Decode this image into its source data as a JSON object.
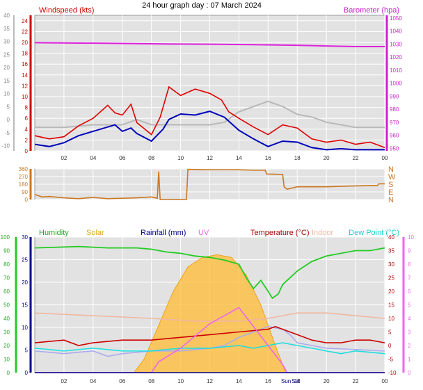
{
  "title": "24 hour graph day : 07 March 2024",
  "colors": {
    "wind": "#e00000",
    "wind_dir_series": "#cc7722",
    "baro": "#dd22dd",
    "humidity": "#22cc22",
    "solar": "#ffbb33",
    "rain": "#000088",
    "uv": "#ee66ee",
    "temp": "#cc0000",
    "indoor": "#f0b8a0",
    "dew": "#22dddd",
    "gray_line": "#b8b8b8",
    "gust_blue": "#0000bb",
    "lavender": "#aaaaee",
    "grid": "#ffffff",
    "plot_bg": "#e2e2e2"
  },
  "x_ticks": [
    "02",
    "04",
    "06",
    "08",
    "10",
    "12",
    "14",
    "16",
    "18",
    "20",
    "22",
    "00"
  ],
  "annotations": {
    "sun_rise": "Sun",
    "sun_set": "Set"
  },
  "panel1": {
    "left_axis_label": "Windspeed (kts)",
    "right_axis_label": "Barometer (hpa)",
    "left_ticks": [
      "0",
      "2",
      "4",
      "6",
      "8",
      "10",
      "12",
      "14",
      "16",
      "18",
      "20",
      "22",
      "24"
    ],
    "outer_ticks": [
      "-10",
      "-5",
      "0",
      "5",
      "10",
      "15",
      "20",
      "25",
      "30",
      "35",
      "40"
    ],
    "right_ticks": [
      "950",
      "960",
      "970",
      "980",
      "990",
      "1000",
      "1010",
      "1020",
      "1030",
      "1040",
      "1050"
    ]
  },
  "panel2": {
    "left_ticks": [
      "0",
      "90",
      "180",
      "270",
      "360"
    ],
    "right_ticks": [
      "N",
      "E",
      "S",
      "W",
      "N"
    ]
  },
  "panel3": {
    "headers": [
      "Humidity",
      "Solar",
      "Rainfall (mm)",
      "UV",
      "Temperature (°C)",
      "Indoor",
      "Dew Point (°C)"
    ],
    "far_left_ticks": [
      "0",
      "10",
      "20",
      "30",
      "40",
      "50",
      "60",
      "70",
      "80",
      "90",
      "100"
    ],
    "left_ticks": [
      "0",
      "5",
      "10",
      "15",
      "20",
      "25",
      "30"
    ],
    "right_ticks": [
      "-10",
      "-5",
      "0",
      "5",
      "10",
      "15",
      "20",
      "25",
      "30",
      "35",
      "40"
    ],
    "far_right_ticks": [
      "0",
      "1",
      "2",
      "3",
      "4",
      "5",
      "6",
      "7",
      "8",
      "9",
      "10"
    ]
  },
  "chart_data": [
    {
      "type": "line",
      "title": "24 hour graph day : 07 March 2024",
      "ylabel": "Windspeed (kts)",
      "y2label": "Barometer (hpa)",
      "ylim": [
        0,
        25
      ],
      "y2lim": [
        950,
        1050
      ],
      "x_unit": "hours",
      "xlim": [
        0,
        24
      ],
      "series": [
        {
          "name": "Barometer (hpa)",
          "axis": "right",
          "points": [
            [
              0,
              1031
            ],
            [
              5,
              1030.5
            ],
            [
              9,
              1030
            ],
            [
              12,
              1029.8
            ],
            [
              15,
              1029.5
            ],
            [
              18,
              1029
            ],
            [
              20,
              1028.5
            ],
            [
              22,
              1028
            ],
            [
              24,
              1028
            ]
          ]
        },
        {
          "name": "Windspeed (kts)",
          "axis": "left",
          "points": [
            [
              0,
              1.2
            ],
            [
              1,
              0.8
            ],
            [
              2,
              1.5
            ],
            [
              3,
              2.8
            ],
            [
              4,
              3.6
            ],
            [
              5,
              4.4
            ],
            [
              5.5,
              4.8
            ],
            [
              6,
              3.6
            ],
            [
              6.6,
              4.2
            ],
            [
              7,
              3.2
            ],
            [
              8,
              1.8
            ],
            [
              8.8,
              4.0
            ],
            [
              9.2,
              5.8
            ],
            [
              10,
              6.8
            ],
            [
              11,
              6.6
            ],
            [
              12,
              7.3
            ],
            [
              13,
              6.2
            ],
            [
              13.5,
              5.0
            ],
            [
              14,
              3.8
            ],
            [
              15,
              2.2
            ],
            [
              16,
              0.8
            ],
            [
              17,
              1.8
            ],
            [
              18,
              1.6
            ],
            [
              19,
              0.6
            ],
            [
              20,
              0.2
            ],
            [
              21,
              0.4
            ],
            [
              22,
              0.2
            ],
            [
              24,
              0.2
            ]
          ]
        },
        {
          "name": "Wind Gust (kts)",
          "axis": "left",
          "points": [
            [
              0,
              2.8
            ],
            [
              1,
              2.2
            ],
            [
              2,
              2.6
            ],
            [
              3,
              4.6
            ],
            [
              4,
              6.0
            ],
            [
              5,
              8.4
            ],
            [
              5.5,
              7.0
            ],
            [
              6,
              6.6
            ],
            [
              6.6,
              8.6
            ],
            [
              7,
              5.2
            ],
            [
              8,
              3.0
            ],
            [
              8.6,
              6.2
            ],
            [
              9.2,
              11.8
            ],
            [
              10,
              10.2
            ],
            [
              11,
              11.4
            ],
            [
              12,
              10.6
            ],
            [
              12.8,
              9.4
            ],
            [
              13.3,
              7.2
            ],
            [
              14,
              6.0
            ],
            [
              15,
              4.4
            ],
            [
              16,
              3.0
            ],
            [
              17,
              4.8
            ],
            [
              18,
              4.2
            ],
            [
              19,
              2.2
            ],
            [
              20,
              1.6
            ],
            [
              21,
              2.0
            ],
            [
              22,
              1.2
            ],
            [
              23,
              1.6
            ],
            [
              24,
              0.6
            ]
          ]
        },
        {
          "name": "Gray line",
          "axis": "outer",
          "points": [
            [
              0,
              -3
            ],
            [
              2,
              -3
            ],
            [
              4,
              -2
            ],
            [
              6,
              -2
            ],
            [
              7,
              0
            ],
            [
              8,
              -2
            ],
            [
              9,
              -2
            ],
            [
              10,
              -2
            ],
            [
              12,
              -2
            ],
            [
              13,
              -1
            ],
            [
              14,
              3
            ],
            [
              16,
              7
            ],
            [
              17,
              5
            ],
            [
              18,
              2
            ],
            [
              19,
              1
            ],
            [
              20,
              -1
            ],
            [
              22,
              -3
            ],
            [
              24,
              -3
            ]
          ]
        }
      ]
    },
    {
      "type": "line",
      "ylabel": "",
      "ylim": [
        0,
        360
      ],
      "x_unit": "hours",
      "xlim": [
        0,
        24
      ],
      "series": [
        {
          "name": "Wind direction",
          "points": [
            [
              0,
              60
            ],
            [
              0.5,
              30
            ],
            [
              1,
              35
            ],
            [
              2,
              20
            ],
            [
              3,
              10
            ],
            [
              4,
              25
            ],
            [
              5,
              10
            ],
            [
              6,
              15
            ],
            [
              7,
              20
            ],
            [
              8,
              30
            ],
            [
              8.4,
              15
            ],
            [
              8.5,
              330
            ],
            [
              8.6,
              0
            ],
            [
              10.4,
              0
            ],
            [
              10.5,
              355
            ],
            [
              12,
              350
            ],
            [
              13,
              352
            ],
            [
              14,
              350
            ],
            [
              15,
              345
            ],
            [
              15.8,
              345
            ],
            [
              15.9,
              300
            ],
            [
              17,
              295
            ],
            [
              17.1,
              150
            ],
            [
              17.3,
              120
            ],
            [
              18,
              150
            ],
            [
              20,
              150
            ],
            [
              22,
              160
            ],
            [
              23.5,
              165
            ],
            [
              23.6,
              185
            ],
            [
              24,
              185
            ]
          ]
        }
      ]
    },
    {
      "type": "area",
      "xlim": [
        0,
        24
      ],
      "x_unit": "hours",
      "axes": {
        "humidity": [
          0,
          100
        ],
        "rainfall_mm": [
          0,
          30
        ],
        "temperature_c": [
          -10,
          40
        ],
        "uv": [
          0,
          10
        ]
      },
      "series": [
        {
          "name": "Humidity",
          "axis": "humidity",
          "points": [
            [
              0,
              92
            ],
            [
              3,
              93
            ],
            [
              5,
              92
            ],
            [
              7,
              92
            ],
            [
              8,
              91
            ],
            [
              9,
              89
            ],
            [
              10,
              88
            ],
            [
              11,
              86
            ],
            [
              12,
              85
            ],
            [
              13,
              83
            ],
            [
              14,
              80
            ],
            [
              14.5,
              70
            ],
            [
              15,
              62
            ],
            [
              15.5,
              68
            ],
            [
              16,
              60
            ],
            [
              16.3,
              55
            ],
            [
              16.7,
              58
            ],
            [
              17,
              65
            ],
            [
              18,
              75
            ],
            [
              19,
              82
            ],
            [
              20,
              86
            ],
            [
              21,
              88
            ],
            [
              22,
              90
            ],
            [
              23,
              90
            ],
            [
              24,
              92
            ]
          ]
        },
        {
          "name": "Solar",
          "axis": "solar",
          "points": [
            [
              0,
              0
            ],
            [
              6.8,
              0
            ],
            [
              7.5,
              10
            ],
            [
              8.5,
              35
            ],
            [
              9.5,
              60
            ],
            [
              10.5,
              78
            ],
            [
              11.5,
              85
            ],
            [
              12.5,
              87
            ],
            [
              13.5,
              85
            ],
            [
              14.5,
              72
            ],
            [
              15.5,
              50
            ],
            [
              16.5,
              20
            ],
            [
              17.2,
              0
            ],
            [
              24,
              0
            ]
          ]
        },
        {
          "name": "Indoor",
          "axis": "temperature_c",
          "points": [
            [
              0,
              12
            ],
            [
              4,
              11
            ],
            [
              8,
              10
            ],
            [
              11,
              9
            ],
            [
              14,
              9
            ],
            [
              16,
              10
            ],
            [
              18,
              12
            ],
            [
              20,
              12
            ],
            [
              22,
              11
            ],
            [
              24,
              10
            ]
          ]
        },
        {
          "name": "Temperature (°C)",
          "axis": "temperature_c",
          "points": [
            [
              0,
              1
            ],
            [
              2,
              2
            ],
            [
              3,
              0
            ],
            [
              4,
              1
            ],
            [
              6,
              2
            ],
            [
              8,
              2
            ],
            [
              10,
              3
            ],
            [
              12,
              4
            ],
            [
              14,
              5
            ],
            [
              16,
              6
            ],
            [
              16.5,
              7
            ],
            [
              17,
              6
            ],
            [
              18,
              4
            ],
            [
              19,
              2
            ],
            [
              20,
              1
            ],
            [
              21,
              1
            ],
            [
              22,
              2
            ],
            [
              23,
              2
            ],
            [
              24,
              1
            ]
          ]
        },
        {
          "name": "Dew Point (°C)",
          "axis": "temperature_c",
          "points": [
            [
              0,
              -1
            ],
            [
              2,
              -2
            ],
            [
              4,
              -1
            ],
            [
              6,
              -2
            ],
            [
              8,
              -2
            ],
            [
              10,
              -1
            ],
            [
              12,
              -1
            ],
            [
              14,
              0
            ],
            [
              15,
              -1
            ],
            [
              16,
              0
            ],
            [
              17,
              1
            ],
            [
              18,
              0
            ],
            [
              19,
              -1
            ],
            [
              20,
              -2
            ],
            [
              21,
              -3
            ],
            [
              22,
              -2
            ],
            [
              24,
              -3
            ]
          ]
        },
        {
          "name": "Lavender line",
          "axis": "temperature_c",
          "points": [
            [
              0,
              -2
            ],
            [
              2,
              -3
            ],
            [
              4,
              -2
            ],
            [
              5,
              -4
            ],
            [
              6,
              -3
            ],
            [
              8,
              -2
            ],
            [
              10,
              -2
            ],
            [
              12,
              -1
            ],
            [
              13,
              0
            ],
            [
              14,
              3
            ],
            [
              15,
              5
            ],
            [
              16,
              7
            ],
            [
              17,
              6
            ],
            [
              17.5,
              4
            ],
            [
              18,
              1
            ],
            [
              19,
              0
            ],
            [
              20,
              -1
            ],
            [
              24,
              -2
            ]
          ]
        },
        {
          "name": "UV",
          "axis": "uv",
          "points": [
            [
              0,
              0
            ],
            [
              8,
              0
            ],
            [
              8.5,
              0.8
            ],
            [
              10,
              1.8
            ],
            [
              12,
              3.6
            ],
            [
              13,
              4.2
            ],
            [
              14,
              4.8
            ],
            [
              15,
              3.4
            ],
            [
              16,
              2.0
            ],
            [
              17,
              0.6
            ],
            [
              17.3,
              0
            ],
            [
              24,
              0
            ]
          ]
        },
        {
          "name": "Rainfall (mm)",
          "axis": "rainfall_mm",
          "points": [
            [
              0,
              0
            ],
            [
              24,
              0
            ]
          ]
        }
      ]
    }
  ]
}
